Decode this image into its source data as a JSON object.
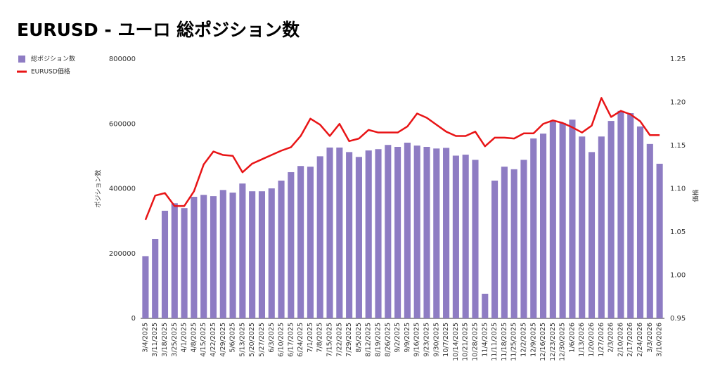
{
  "chart_data": {
    "type": "bar-line",
    "title": "EURUSD - ユーロ 総ポジション数",
    "y_label": "ポジション数",
    "y2_label": "価格",
    "legend": "top-left",
    "grid": false,
    "categories": [
      "3/4/2025",
      "3/11/2025",
      "3/18/2025",
      "3/25/2025",
      "4/1/2025",
      "4/8/2025",
      "4/15/2025",
      "4/22/2025",
      "4/29/2025",
      "5/6/2025",
      "5/13/2025",
      "5/20/2025",
      "5/27/2025",
      "6/3/2025",
      "6/10/2025",
      "6/17/2025",
      "6/24/2025",
      "7/1/2025",
      "7/8/2025",
      "7/15/2025",
      "7/22/2025",
      "7/29/2025",
      "8/5/2025",
      "8/12/2025",
      "8/19/2025",
      "8/26/2025",
      "9/2/2025",
      "9/9/2025",
      "9/16/2025",
      "9/23/2025",
      "9/30/2025",
      "10/7/2025",
      "10/14/2025",
      "10/21/2025",
      "10/28/2025",
      "11/4/2025",
      "11/11/2025",
      "11/18/2025",
      "11/25/2025",
      "12/2/2025",
      "12/9/2025",
      "12/16/2025",
      "12/23/2025",
      "12/30/2025",
      "1/6/2026",
      "1/13/2026",
      "1/20/2026",
      "1/27/2026",
      "2/3/2026",
      "2/10/2026",
      "2/17/2026",
      "2/24/2026",
      "3/3/2026",
      "3/10/2026"
    ],
    "series": [
      {
        "name": "総ポジション数",
        "type": "bar",
        "color": "#8e7cc3",
        "values": [
          192000,
          245000,
          332000,
          355000,
          340000,
          375000,
          381000,
          377000,
          396000,
          388000,
          416000,
          392000,
          392000,
          401000,
          425000,
          451000,
          470000,
          468000,
          500000,
          527000,
          527000,
          513000,
          498000,
          518000,
          522000,
          535000,
          529000,
          542000,
          533000,
          529000,
          524000,
          526000,
          502000,
          505000,
          489000,
          76000,
          425000,
          468000,
          460000,
          489000,
          555000,
          570000,
          609000,
          603000,
          613000,
          561000,
          513000,
          561000,
          609000,
          640000,
          633000,
          592000,
          538000,
          477000
        ]
      },
      {
        "name": "EURUSD価格",
        "type": "line",
        "color": "#e81416",
        "axis": "y2",
        "values": [
          1.064,
          1.092,
          1.095,
          1.08,
          1.08,
          1.097,
          1.128,
          1.143,
          1.139,
          1.138,
          1.119,
          1.129,
          1.134,
          1.139,
          1.144,
          1.148,
          1.161,
          1.181,
          1.174,
          1.161,
          1.175,
          1.155,
          1.158,
          1.168,
          1.165,
          1.165,
          1.165,
          1.172,
          1.187,
          1.182,
          1.174,
          1.166,
          1.161,
          1.161,
          1.166,
          1.149,
          1.159,
          1.159,
          1.158,
          1.164,
          1.164,
          1.175,
          1.179,
          1.176,
          1.171,
          1.165,
          1.173,
          1.205,
          1.183,
          1.19,
          1.186,
          1.178,
          1.162,
          1.162
        ]
      }
    ],
    "ylim": [
      0,
      800000
    ],
    "yticks": [
      0,
      200000,
      400000,
      600000,
      800000
    ],
    "y2lim": [
      0.95,
      1.25
    ],
    "y2ticks": [
      0.95,
      {
        "value": 1,
        "label": "1.00"
      },
      1.05,
      {
        "value": 1.1,
        "label": "1.10"
      },
      1.15,
      {
        "value": 1.2,
        "label": "1.20"
      },
      1.25
    ]
  }
}
